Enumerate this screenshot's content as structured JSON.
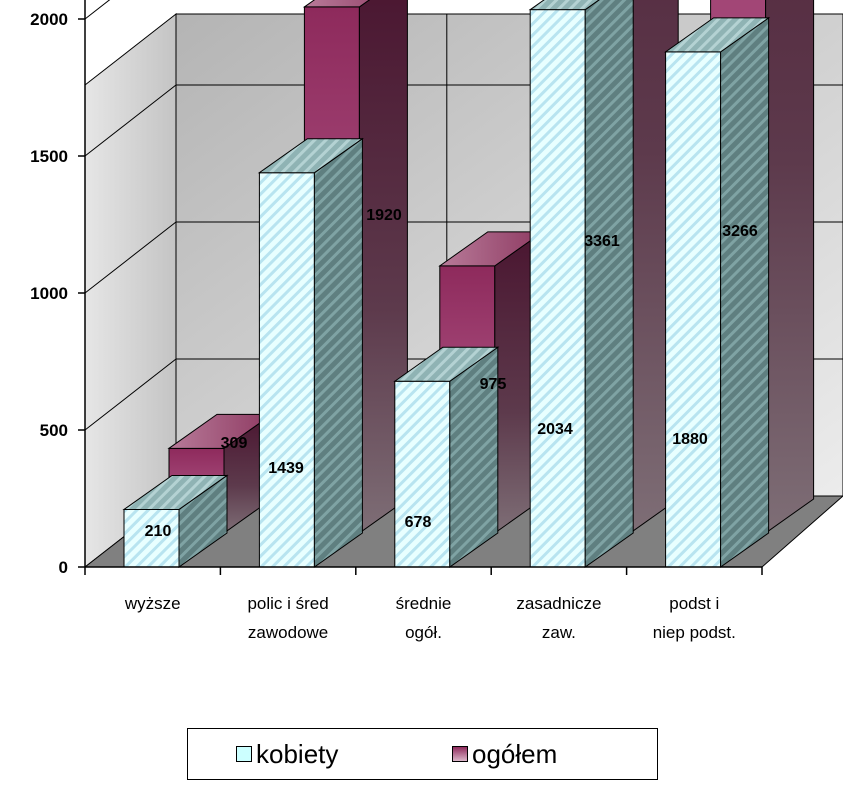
{
  "chart_data": {
    "type": "bar",
    "categories": [
      [
        "wyższe"
      ],
      [
        "polic i śred",
        "zawodowe"
      ],
      [
        "średnie",
        "ogół."
      ],
      [
        "zasadnicze",
        "zaw."
      ],
      [
        "podst i",
        "niep podst."
      ]
    ],
    "series": [
      {
        "name": "kobiety",
        "values": [
          210,
          1439,
          678,
          2034,
          1880
        ]
      },
      {
        "name": "ogółem",
        "values": [
          309,
          1920,
          975,
          3361,
          3266
        ]
      }
    ],
    "ylim": [
      0,
      3500
    ],
    "yticks": [
      0,
      500,
      1000,
      1500,
      2000,
      2500,
      3000,
      3500
    ],
    "grid": true,
    "legend_position": "bottom"
  },
  "colors": {
    "kobiety": "#ccffff",
    "ogolem": "#993366",
    "wall": "#c0c0c0",
    "floor": "#808080"
  },
  "legend": {
    "items": [
      "kobiety",
      "ogółem"
    ]
  }
}
